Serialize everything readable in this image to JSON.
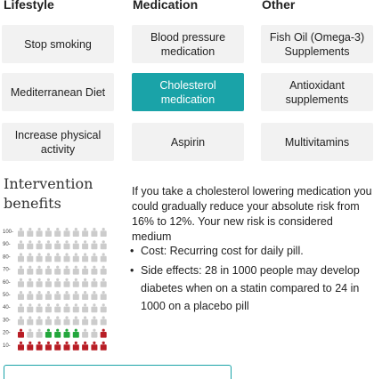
{
  "columns": {
    "lifestyle": "Lifestyle",
    "medication": "Medication",
    "other": "Other"
  },
  "options": {
    "lifestyle": [
      "Stop smoking",
      "Mediterranean Diet",
      "Increase physical activity"
    ],
    "medication": [
      "Blood pressure medication",
      "Cholesterol medication",
      "Aspirin"
    ],
    "other": [
      "Fish Oil (Omega-3) Supplements",
      "Antioxidant supplements",
      "Multivitamins"
    ],
    "selected": "Cholesterol medication"
  },
  "benefits": {
    "title": "Intervention benefits",
    "risk_text": "If you take a cholesterol lowering medication you could gradually reduce your absolute risk from 16% to 12%. Your new risk is considered medium",
    "cost": "Cost: Recurring cost for daily pill.",
    "side_effects": "Side effects: 28 in 1000 people may develop diabetes when on a statin compared to 24 in 1000 on a placebo pill"
  },
  "chart_data": {
    "type": "pictograph",
    "y_ticks": [
      "100-",
      "90-",
      "80-",
      "70-",
      "60-",
      "50-",
      "40-",
      "30-",
      "20-",
      "10-"
    ],
    "columns": 10,
    "rows": 10,
    "risk_at_risk_count": 12,
    "reduced_risk_count": 4,
    "colors": {
      "empty": "#cccccc",
      "at_risk": "#b81d25",
      "saved": "#22a63b"
    }
  }
}
